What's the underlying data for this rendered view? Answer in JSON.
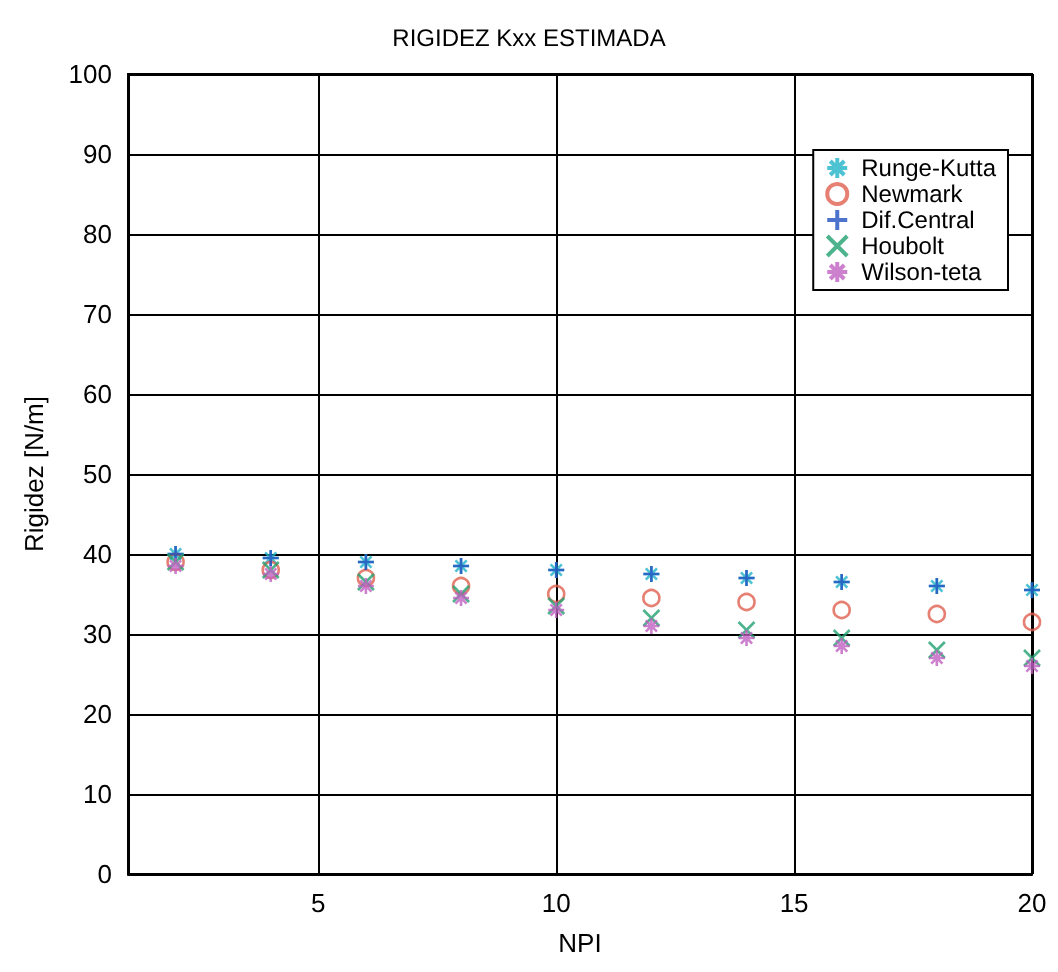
{
  "chart_data": {
    "type": "scatter",
    "title": "RIGIDEZ Kxx ESTIMADA",
    "xlabel": "NPI",
    "ylabel": "Rigidez [N/m]",
    "x": [
      2,
      4,
      6,
      8,
      10,
      12,
      14,
      16,
      18,
      20
    ],
    "series": [
      {
        "name": "Runge-Kutta",
        "color": "#1fb3c8",
        "marker": "cross",
        "values": [
          40,
          39.5,
          39,
          38.5,
          38,
          37.5,
          37,
          36.5,
          36,
          35.5
        ]
      },
      {
        "name": "Newmark",
        "color": "#e06050",
        "marker": "circle",
        "values": [
          39,
          38,
          37,
          36,
          35,
          34.5,
          34,
          33,
          32.5,
          31.5
        ]
      },
      {
        "name": "Dif.Central",
        "color": "#2050c0",
        "marker": "plus",
        "values": [
          40,
          39.5,
          39,
          38.5,
          38,
          37.5,
          37,
          36.5,
          36,
          35.5
        ]
      },
      {
        "name": "Houbolt",
        "color": "#20a070",
        "marker": "x",
        "values": [
          39,
          38,
          36.5,
          35,
          33.5,
          32,
          30.5,
          29.5,
          28,
          27
        ]
      },
      {
        "name": "Wilson-teta",
        "color": "#c060c0",
        "marker": "cross",
        "values": [
          38.5,
          37.5,
          36,
          34.5,
          33,
          31,
          29.5,
          28.5,
          27,
          26
        ]
      }
    ],
    "xlim": [
      1,
      20
    ],
    "xticks": [
      5,
      10,
      15,
      20
    ],
    "ylim": [
      0,
      100
    ],
    "yticks": [
      0,
      10,
      20,
      30,
      40,
      50,
      60,
      70,
      80,
      90,
      100
    ],
    "grid": true,
    "legend": "top right"
  }
}
